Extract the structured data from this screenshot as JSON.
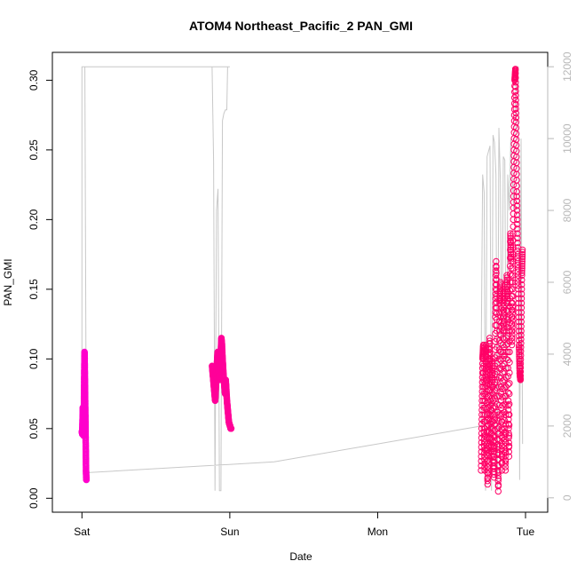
{
  "chart_data": {
    "type": "scatter",
    "title": "ATOM4 Northeast_Pacific_2 PAN_GMI",
    "xlabel": "Date",
    "ylabel": "PAN_GMI",
    "x_ticks": [
      "Sat",
      "Sun",
      "Mon",
      "Tue"
    ],
    "x_tick_values_days": [
      0,
      1,
      2,
      3
    ],
    "xlim_days": [
      -0.2,
      3.15
    ],
    "ylim": [
      -0.01,
      0.32
    ],
    "y_ticks": [
      "0.00",
      "0.05",
      "0.10",
      "0.15",
      "0.20",
      "0.25",
      "0.30"
    ],
    "y_tick_values": [
      0.0,
      0.05,
      0.1,
      0.15,
      0.2,
      0.25,
      0.3
    ],
    "y2_ticks": [
      "0",
      "2000",
      "4000",
      "6000",
      "8000",
      "10000",
      "12000"
    ],
    "y2_tick_values": [
      0,
      2000,
      4000,
      6000,
      8000,
      10000,
      12000
    ],
    "y2lim": [
      -400,
      12400
    ],
    "grid": false,
    "colors": {
      "points_light": "#ff33cc",
      "points_dark": "#ff0066",
      "altitude_line": "#c8c8c8",
      "right_axis": "#b8b8b8"
    },
    "series": [
      {
        "color": "#ff00cc",
        "segments": [
          {
            "x_start": 0.0,
            "x_end": 0.03,
            "y": [
              0.048,
              0.047,
              0.046,
              0.052,
              0.058,
              0.065,
              0.062,
              0.055,
              0.05,
              0.045,
              0.05,
              0.06,
              0.072,
              0.085,
              0.095,
              0.105,
              0.1,
              0.09,
              0.08,
              0.07,
              0.06,
              0.05,
              0.04,
              0.03,
              0.02,
              0.015,
              0.013
            ]
          }
        ]
      },
      {
        "color": "#ff0099",
        "segments": [
          {
            "x_start": 0.88,
            "x_end": 1.01,
            "y": [
              0.095,
              0.09,
              0.085,
              0.08,
              0.075,
              0.07,
              0.078,
              0.088,
              0.098,
              0.105,
              0.1,
              0.09,
              0.085,
              0.095,
              0.105,
              0.115,
              0.11,
              0.1,
              0.092,
              0.085,
              0.08,
              0.075,
              0.085,
              0.078,
              0.07,
              0.065,
              0.06,
              0.055,
              0.053,
              0.052,
              0.05,
              0.05
            ]
          }
        ]
      },
      {
        "color": "#ff0066",
        "segments": [
          {
            "x_start": 2.7,
            "x_end": 2.98,
            "y": [
              0.02,
              0.06,
              0.1,
              0.11,
              0.05,
              0.02,
              0.08,
              0.11,
              0.06,
              0.01,
              0.04,
              0.09,
              0.115,
              0.07,
              0.03,
              0.08,
              0.1,
              0.04,
              0.015,
              0.06,
              0.13,
              0.17,
              0.12,
              0.05,
              0.005,
              0.06,
              0.14,
              0.155,
              0.08,
              0.02,
              0.09,
              0.15,
              0.12,
              0.05,
              0.02,
              0.1,
              0.16,
              0.14,
              0.07,
              0.03,
              0.12,
              0.19,
              0.17,
              0.11,
              0.14,
              0.2,
              0.25,
              0.3,
              0.308,
              0.27,
              0.22,
              0.18,
              0.15,
              0.11,
              0.09,
              0.085,
              0.12,
              0.16,
              0.18
            ]
          }
        ]
      }
    ],
    "secondary_line": {
      "label": "",
      "x": [
        0.0,
        0.0,
        0.02,
        0.02,
        0.4,
        0.8,
        0.88,
        0.89,
        0.9,
        0.91,
        0.92,
        0.93,
        0.94,
        0.95,
        0.96,
        0.97,
        0.98,
        0.985,
        1.0,
        1.0,
        0.02,
        0.03,
        1.3,
        2.0,
        2.7,
        2.7,
        2.71,
        2.72,
        2.73,
        2.74,
        2.76,
        2.77,
        2.78,
        2.79,
        2.8,
        2.81,
        2.82,
        2.83,
        2.84,
        2.85,
        2.86,
        2.87,
        2.88,
        2.89,
        2.9,
        2.91,
        2.92,
        2.93,
        2.94,
        2.95,
        2.96,
        2.97,
        2.98
      ],
      "y": [
        4000,
        12000,
        12000,
        12000,
        12000,
        12000,
        12000,
        9400,
        200,
        8000,
        8600,
        200,
        200,
        10500,
        10700,
        10800,
        10800,
        12000,
        12000,
        12000,
        12000,
        700,
        1000,
        1500,
        2000,
        3600,
        9000,
        8500,
        200,
        9500,
        9800,
        200,
        10100,
        9900,
        9000,
        200,
        10300,
        8800,
        3000,
        9500,
        9400,
        1500,
        9000,
        8000,
        10000,
        9000,
        8000,
        11000,
        12000,
        12000,
        500,
        10000,
        1500
      ]
    }
  }
}
